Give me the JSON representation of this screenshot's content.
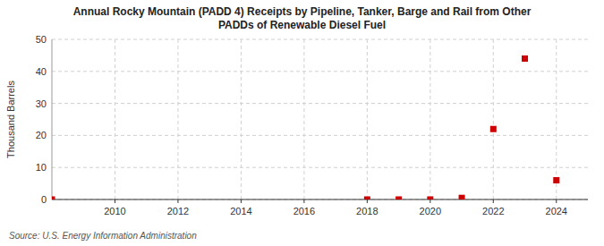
{
  "chart_data": {
    "type": "scatter",
    "title": "Annual Rocky Mountain (PADD 4) Receipts by Pipeline, Tanker, Barge and Rail from Other\nPADDs of Renewable Diesel Fuel",
    "y_label": "Thousand Barrels",
    "annotations": [
      "Source: U.S. Energy Information Administration"
    ],
    "x": [
      2008,
      2018,
      2019,
      2020,
      2021,
      2022,
      2023,
      2024
    ],
    "values": [
      0,
      0,
      0,
      0,
      0.5,
      22,
      44,
      6
    ],
    "color": "#cc0000",
    "marker": "square",
    "xlim": [
      2008,
      2025
    ],
    "ylim": [
      0,
      50
    ],
    "xticks": [
      2010,
      2012,
      2014,
      2016,
      2018,
      2020,
      2022,
      2024
    ],
    "yticks": [
      0,
      10,
      20,
      30,
      40,
      50
    ],
    "grid": true
  }
}
